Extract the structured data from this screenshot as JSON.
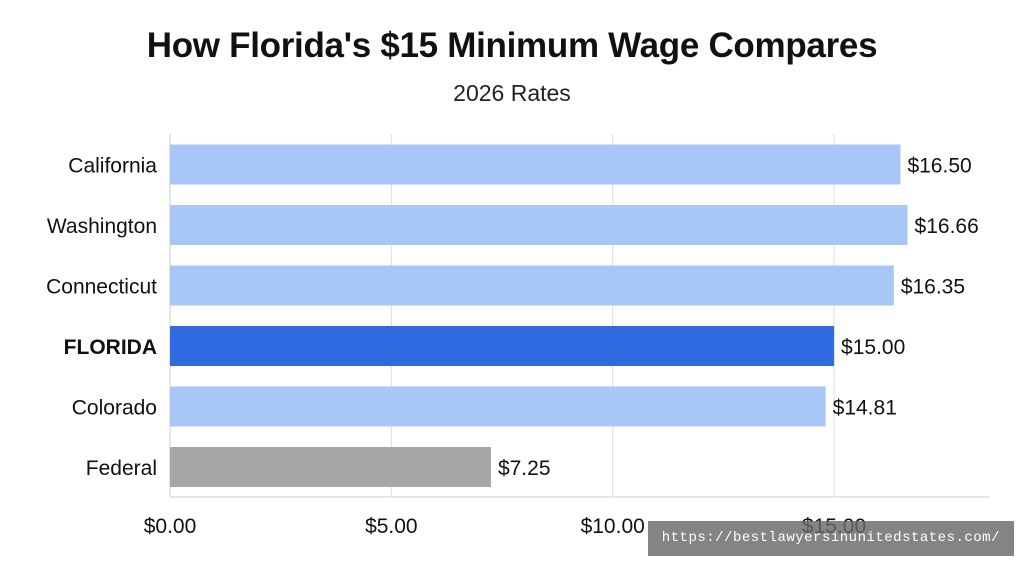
{
  "chart_data": {
    "type": "bar",
    "orientation": "horizontal",
    "title": "How Florida's $15 Minimum Wage Compares",
    "subtitle": "2026 Rates",
    "categories": [
      "California",
      "Washington",
      "Connecticut",
      "FLORIDA",
      "Colorado",
      "Federal"
    ],
    "values": [
      16.5,
      16.66,
      16.35,
      15.0,
      14.81,
      7.25
    ],
    "value_labels": [
      "$16.50",
      "$16.66",
      "$16.35",
      "$15.00",
      "$14.81",
      "$7.25"
    ],
    "highlight_category": "FLORIDA",
    "bar_colors": [
      "#a8c7f7",
      "#a8c7f7",
      "#a8c7f7",
      "#2f6ae0",
      "#a8c7f7",
      "#a6a6a6"
    ],
    "x_ticks": [
      0,
      5,
      10,
      15
    ],
    "x_tick_labels": [
      "$0.00",
      "$5.00",
      "$10.00",
      "$15.00"
    ],
    "xlim": [
      0,
      18.5
    ],
    "grid": true,
    "legend": "none"
  },
  "watermark": "https://bestlawyersinunitedstates.com/",
  "colors": {
    "bar_default": "#a8c7f7",
    "bar_highlight": "#2f6ae0",
    "bar_federal": "#a6a6a6",
    "grid": "#dddddd",
    "axis": "#cccccc",
    "text": "#111111"
  }
}
